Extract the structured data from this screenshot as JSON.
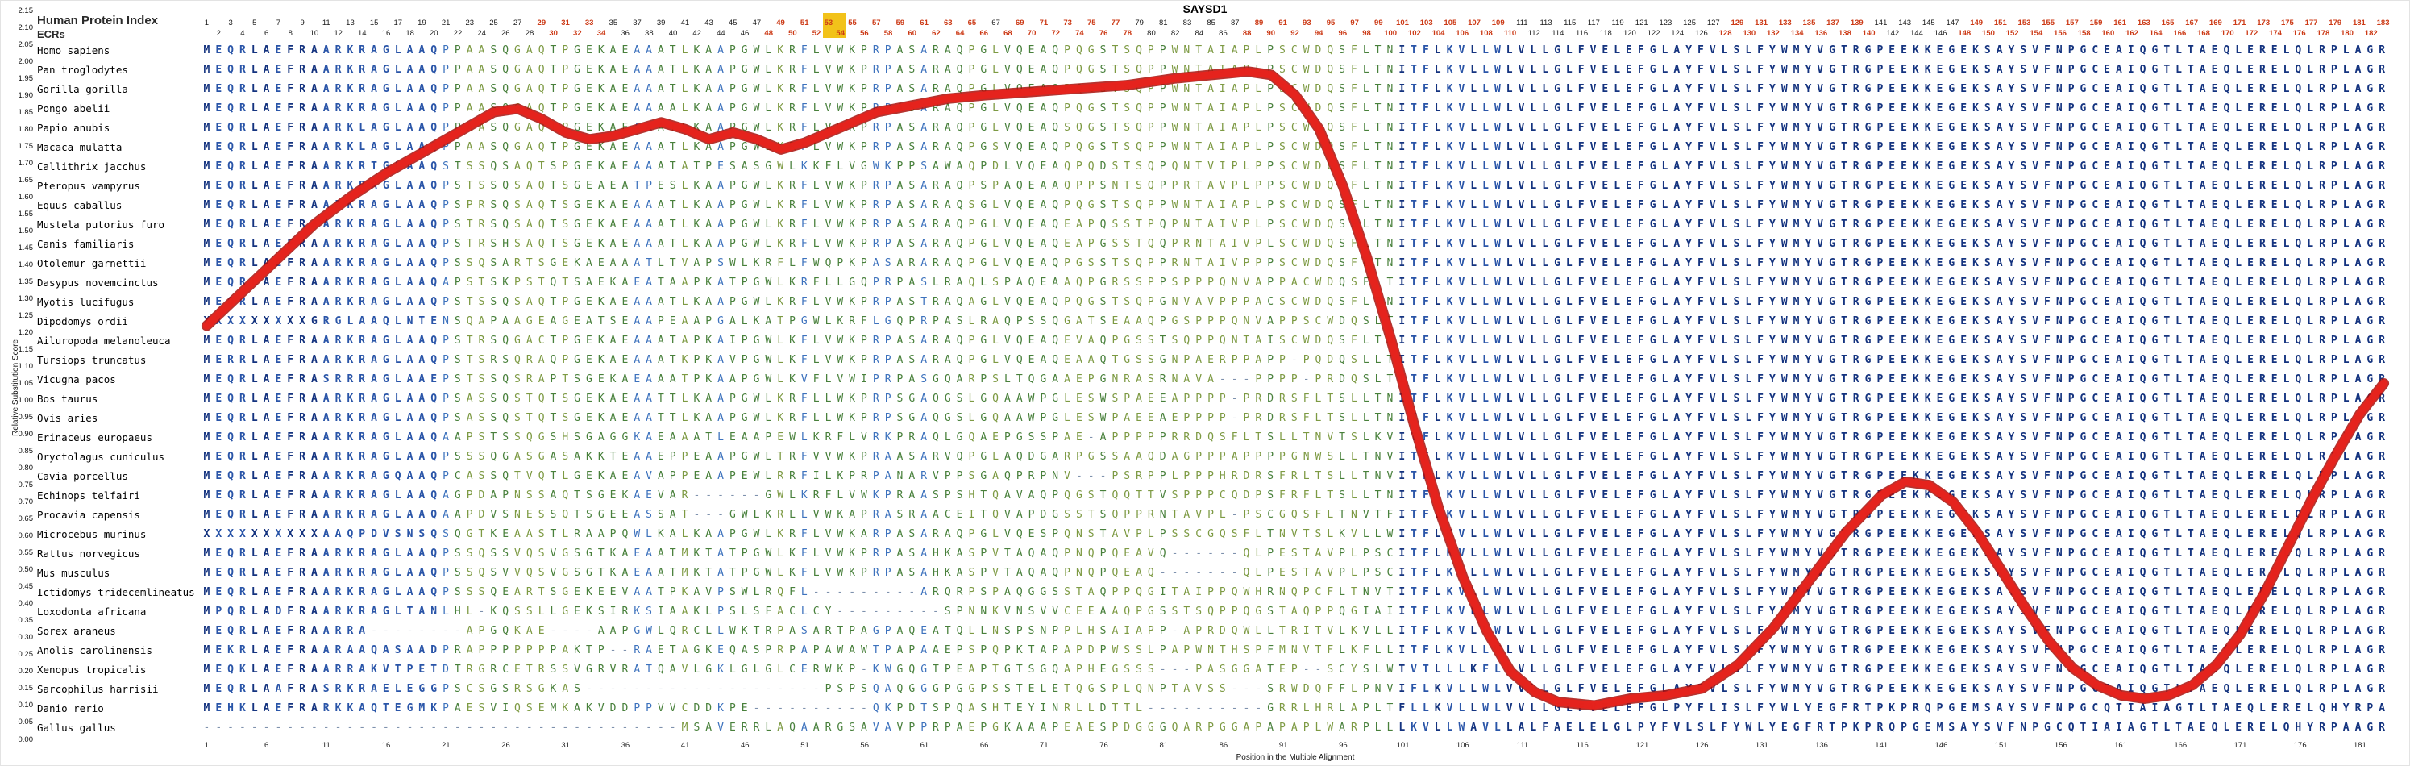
{
  "title": "SAYSD1",
  "header": {
    "index_label": "Human Protein Index",
    "ecrs_label": "ECRs"
  },
  "y_axis": {
    "label": "Relative Substitution Score",
    "ticks": [
      "2.15",
      "2.10",
      "2.05",
      "2.00",
      "1.95",
      "1.90",
      "1.85",
      "1.80",
      "1.75",
      "1.70",
      "1.65",
      "1.60",
      "1.55",
      "1.50",
      "1.45",
      "1.40",
      "1.35",
      "1.30",
      "1.25",
      "1.20",
      "1.15",
      "1.10",
      "1.05",
      "1.00",
      "0.95",
      "0.90",
      "0.85",
      "0.80",
      "0.75",
      "0.70",
      "0.65",
      "0.60",
      "0.55",
      "0.50",
      "0.45",
      "0.40",
      "0.35",
      "0.30",
      "0.25",
      "0.20",
      "0.15",
      "0.10",
      "0.05",
      "0.00"
    ]
  },
  "x_axis": {
    "label": "Position in the Multiple Alignment",
    "ticks": [
      1,
      6,
      11,
      16,
      21,
      26,
      31,
      36,
      41,
      46,
      51,
      56,
      61,
      66,
      71,
      76,
      81,
      86,
      91,
      96,
      101,
      106,
      111,
      116,
      121,
      126,
      131,
      136,
      141,
      146,
      151,
      156,
      161,
      166,
      171,
      176,
      181
    ]
  },
  "colors": {
    "line": "#e8231c",
    "line_shadow": "#a90f0b",
    "number_highlight": "#cc3a16",
    "number_default": "#1a1a1a",
    "yellow_marker": "#f2c21a",
    "seq_high": "#14337f",
    "seq_mid": "#2a55a8",
    "seq_low": "#3d72bd",
    "seq_green": "#48803b",
    "seq_olive": "#7d9a43",
    "gap": "#7e91ad"
  },
  "alignment": {
    "num_positions": 183,
    "ecr_number_ranges": [
      [
        29,
        34
      ],
      [
        48,
        66
      ],
      [
        68,
        78
      ],
      [
        88,
        110
      ],
      [
        128,
        140
      ],
      [
        148,
        183
      ]
    ],
    "yellow_marker_positions": [
      53,
      54
    ],
    "rows": [
      {
        "species": "Homo sapiens",
        "sequence": "MEQRLAEFRAARKRAGLAAQPPAASQGAQTPGEKAEAAATLKAAPGWLKRFLVWKPRPASARAQPGLVQEAQPQGSTSQPPWNTAIAPLPSCWDQSFLTNITFLKVLLWLVLLGLFVELEFGLAYFVLSLFYWMYVGTRGPEEKKEGEKSAYSVFNPGCEAIQGTLTAEQLERELQLRPLAGR"
      },
      {
        "species": "Pan troglodytes",
        "sequence": "MEQRLAEFRAARKRAGLAAQPPAASQGAQTPGEKAEAAATLKAAPGWLKRFLVWKPRPASARAQPGLVQEAQPQGSTSQPPWNTAIAPLPSCWDQSFLTNITFLKVLLWLVLLGLFVELEFGLAYFVLSLFYWMYVGTRGPEEKKEGEKSAYSVFNPGCEAIQGTLTAEQLERELQLRPLAGR"
      },
      {
        "species": "Gorilla gorilla",
        "sequence": "MEQRLAEFRAARKRAGLAAQPPAASQGAQTPGEKAEAAATLKAAPGWLKRFLVWKPRPASARAQPGLVQEAQPQGSTSQPPWNTAIAPLPSCWDQSFLTNITFLKVLLWLVLLGLFVELEFGLAYFVLSLFYWMYVGTRGPEEKKEGEKSAYSVFNPGCEAIQGTLTAEQLERELQLRPLAGR"
      },
      {
        "species": "Pongo abelii",
        "sequence": "MEQRLAEFRAARKRAGLAAQPPAASQGAQTPGEKAEAAAALKAAPGWLKRFLVWKPRPASARAQPGLVQEAQPQGSTSQPPWNTAIAPLPSCWDQSFLTNITFLKVLLWLVLLGLFVELEFGLAYFVLSLFYWMYVGTRGPEEKKEGEKSAYSVFNPGCEAIQGTLTAEQLERELQLRPLAGR"
      },
      {
        "species": "Papio anubis",
        "sequence": "MEQRLAEFRAARKLAGLAAQPPAASQGAQTPGEKAEAAATLKAAPGWLKRFLVWKPRPASARAQPGLVQEAQSQGSTSQPPWNTAIAPLPSCWDQSFLTNITFLKVLLWLVLLGLFVELEFGLAYFVLSLFYWMYVGTRGPEEKKEGEKSAYSVFNPGCEAIQGTLTAEQLERELQLRPLAGR"
      },
      {
        "species": "Macaca mulatta",
        "sequence": "MEQRLAEFRAARKLAGLAAQPPAASQGAQTPGEKAEAAATLKAAPGWLKRFLVWKPRPASARAQPGSVQEAQPQGSTSQPPWNTAIAPLPSCWDQSFLTNITFLKVLLWLVLLGLFVELEFGLAYFVLSLFYWMYVGTRGPEEKKEGEKSAYSVFNPGCEAIQGTLTAEQLERELQLRPLAGR"
      },
      {
        "species": "Callithrix jacchus",
        "sequence": "MEQRLAEFRAARKRTGLAAQSTSSQSAQTSPGEKAEAAATATPESASGWLKKFLVGWKPPSAWAQPDLVQEAQPQDSTSQPQNTVIPLPPSCWDQSFLTNITFLKVLLWLVLLGLFVELEFGLAYFVLSLFYWMYVGTRGPEEKKEGEKSAYSVFNPGCEAIQGTLTAEQLERELQLRPLAGR"
      },
      {
        "species": "Pteropus vampyrus",
        "sequence": "MEQRLAEFRAARKRAGLAAQPSTSSQSAQTSGEAEATPESLKAAPGWLKRFLVWKPRPASARAQPSPAQEAAQPPSNTSQPPRTAVPLPPSCWDQSFLTNITFLKVLLWLVLLGLFVELEFGLAYFVLSLFYWMYVGTRGPEEKKEGEKSAYSVFNPGCEAIQGTLTAEQLERELQLRPLAGR"
      },
      {
        "species": "Equus caballus",
        "sequence": "MEQRLAEFRAARKRAGLAAQPSPRSQSAQTSGEKAEAAATLKAAPGWLKRFLVWKPRPASARAQSGLVQEAQPQGSTSQPPWNTAIAPLPSCWDQSFLTNITFLKVLLWLVLLGLFVELEFGLAYFVLSLFYWMYVGTRGPEEKKEGEKSAYSVFNPGCEAIQGTLTAEQLERELQLRPLAGR"
      },
      {
        "species": "Mustela putorius furo",
        "sequence": "MEQRLAEFRAARKRAGLAAQPSTRSQSAQTSGEKAEAAATLKAAPGWLKRFLVWKPRPASARAQPGLVQEAQEAPQSSTPQPNTAIVPLPSCWDQSFLTNITFLKVLLWLVLLGLFVELEFGLAYFVLSLFYWMYVGTRGPEEKKEGEKSAYSVFNPGCEAIQGTLTAEQLERELQLRPLAGR"
      },
      {
        "species": "Canis familiaris",
        "sequence": "MEQRLAEFRAARKRAGLAAQPSTRSHSAQTSGEKAEAAATLKAAPGWLKRFLVWKPRPASARAQPGLVQEAQEAPGSSTQQPRNTAIVPLSCWDQSFLTNITFLKVLLWLVLLGLFVELEFGLAYFVLSLFYWMYVGTRGPEEKKEGEKSAYSVFNPGCEAIQGTLTAEQLERELQLRPLAGR"
      },
      {
        "species": "Otolemur garnettii",
        "sequence": "MEQRLAEFRAARKRAGLAAQPSSQSARTSGEKAEAAATLTVAPSWLKRFLFWQPKPASARARAQPGLVQEAQPGSSTSQPPRNTAIVPPPSCWDQSFLTNITFLKVLLWLVLLGLFVELEFGLAYFVLSLFYWMYVGTRGPEEKKEGEKSAYSVFNPGCEAIQGTLTAEQLERELQLRPLAGR"
      },
      {
        "species": "Dasypus novemcinctus",
        "sequence": "MEQRLAEFRAARKRAGLAAQAPSTSKPSTQTSAEKAEATAAPKATPGWLKRFLLGQPRPASLRAQLSPAQEAAQPGRSSPPSPPPQNVAPPACWDQSFLTITFLKVLLWLVLLGLFVELEFGLAYFVLSLFYWMYVGTRGPEEKKEGEKSAYSVFNPGCEAIQGTLTAEQLERELQLRPLAGR"
      },
      {
        "species": "Myotis lucifugus",
        "sequence": "MEQRLAEFRAARKRAGLAAQPSTSSQSAQTPGEKAEAAATLKAAPGWLKRFLVWKPRPASTRAQAGLVQEAQPQGSTSQPGNVAVPPPACSCWDQSFLTNITFLKVLLWLVLLGLFVELEFGLAYFVLSLFYWMYVGTRGPEEKKEGEKSAYSVFNPGCEAIQGTLTAEQLERELQLRPLAGR"
      },
      {
        "species": "Dipodomys ordii",
        "sequence": "XXXXXXXXXGRGLAAQLNTENSQAPAAGEAGEATSEAAPEAAPGALKATPGWLKRFLGQPRPASLRAQPSSQGATSEAAQPGSPPPQNVAPPSCWDQSLTITFLKVLLWLVLLGLFVELEFGLAYFVLSLFYWMYVGTRGPEEKKEGEKSAYSVFNPGCEAIQGTLTAEQLERELQLRPLAGR"
      },
      {
        "species": "Ailuropoda melanoleuca",
        "sequence": "MEQRLAEFRAARKRAGLAAQPSTRSQGACTPGEKAEAAATAPKAIPGWLKFLVWKPRPASARAQPGLVQEAQEVAQPGSSTSQPPQNTAISCWDQSFLTNITFLKVLLWLVLLGLFVELEFGLAYFVLSLFYWMYVGTRGPEEKKEGEKSAYSVFNPGCEAIQGTLTAEQLERELQLRPLAGR"
      },
      {
        "species": "Tursiops truncatus",
        "sequence": "MERRLAEFRAARKRAGLAAQPSTSRSQRAQPGEKAEAAATKPKAVPGWLKFLVWKPRPASARAQPGLVQEAQEAAQTGSSGNPAERPPAPP-PQDQSLLTITFLKVLLWLVLLGLFVELEFGLAYFVLSLFYWMYVGTRGPEEKKEGEKSAYSVFNPGCEAIQGTLTAEQLERELQLRPLAGR"
      },
      {
        "species": "Vicugna pacos",
        "sequence": "MEQRLAEFRASRRRAGLAAEPSTSSQSRAPTSGEKAEAAATPKAAPGWLKVFLVWIPRPASGQARPSLTQGAAEPGNRASRNAVA---PPPP-PRDQSLTITFLKVLLWLVLLGLFVELEFGLAYFVLSLFYWMYVGTRGPEEKKEGEKSAYSVFNPGCEAIQGTLTAEQLERELQLRPLAGR"
      },
      {
        "species": "Bos taurus",
        "sequence": "MEQRLAEFRAARKRAGLAAQPSASSQSTQTSGEKAEAATTLKAAPGWLKRFLLWKPRPSGAQGSLGQAAWPGLESWSPAEEAPPPP-PRDRSFLTSLLTNITFLKVLLWLVLLGLFVELEFGLAYFVLSLFYWMYVGTRGPEEKKEGEKSAYSVFNPGCEAIQGTLTAEQLERELQLRPLAGR"
      },
      {
        "species": "Ovis aries",
        "sequence": "MEQRLAEFRAARKRAGLAAQPSASSQSTQTSGEKAEAATTLKAAPGWLKRFLLWKPRPSGAQGSLGQAAWPGLESWPAEEAEPPPP-PRDRSFLTSLLTNITFLKVLLWLVLLGLFVELEFGLAYFVLSLFYWMYVGTRGPEEKKEGEKSAYSVFNPGCEAIQGTLTAEQLERELQLRPLAGR"
      },
      {
        "species": "Erinaceus europaeus",
        "sequence": "MEQRLAEFRAARKRAGLAAQAAPSTSSQGSHSGAGGKAEAAATLEAAPEWLKRFLVRKPRAQLGQAEPGSSPAE-APPPPPRRDQSFLTSLLTNVTSLKVITFLKVLLWLVLLGLFVELEFGLAYFVLSLFYWMYVGTRGPEEKKEGEKSAYSVFNPGCEAIQGTLTAEQLERELQLRPLAGR"
      },
      {
        "species": "Oryctolagus cuniculus",
        "sequence": "MEQRLAEFRAARKRAGLAAQPSSSQGASGASAKKTEAAEPPEAAPGWLTRFVVWKPRAASARVQPGLAQDGARPGSSAAQDAGPPPAPPPPGNWSLLTNVITFLKVLLWLVLLGLFVELEFGLAYFVLSLFYWMYVGTRGPEEKKEGEKSAYSVFNPGCEAIQGTLTAEQLERELQLRPLAGR"
      },
      {
        "species": "Cavia porcellus",
        "sequence": "MEQRLAEFRAARKRAGQAAQPCASSQTVQTLGEKAEAVAPPEAAPEWLRRFILKPRPANARVPPSGAQPRPNV---PSRPPLPPPHRDRSFRLTSLLTNVITFLKVLLWLVLLGLFVELEFGLAYFVLSLFYWMYVGTRGPEEKKEGEKSAYSVFNPGCEAIQGTLTAEQLERELQLRPLAGR"
      },
      {
        "species": "Echinops telfairi",
        "sequence": "MEQRLAEFRAARKRAGLAAQAGPDAPNSSAQTSGEKAEVAR------GWLKRFLVWKPRAASPSHTQAVAQPQGSTQQTTVSPPPCQDPSFRFLTSLLTNITFLKVLLWLVLLGLFVELEFGLAYFVLSLFYWMYVGTRGPEEKKEGEKSAYSVFNPGCEAIQGTLTAEQLERELQLRPLAGR"
      },
      {
        "species": "Procavia capensis",
        "sequence": "MEQRLAEFRAARKRAGLAAQAAPDVSNESSQTSGEEASSAT---GWLKRLLVWKAPRASRAACEITQVAPDGSSTSQPPRNTAVPL-PSCGQSFLTNVTFITFLKVLLWLVLLGLFVELEFGLAYFVLSLFYWMYVGTRGPEEKKEGEKSAYSVFNPGCEAIQGTLTAEQLERELQLRPLAGR"
      },
      {
        "species": "Microcebus murinus",
        "sequence": "XXXXXXXXXXAAQPDVSNSQSQGTKEAASTLRAAPQWLKALKAAPGWLKRFLVWKARPASARAQPGLVQESPQNSTAVPLPSSCGQSFLTNVTSLKVLLWITFLKVLLWLVLLGLFVELEFGLAYFVLSLFYWMYVGTRGPEEKKEGEKSAYSVFNPGCEAIQGTLTAEQLERELQLRPLAGR"
      },
      {
        "species": "Rattus norvegicus",
        "sequence": "MEQRLAEFRAARKRAGLAAQPSSQSSVQSVGSGTKAEAATMKTATPGWLKFLVWKPRPASAHKASPVTAQAQPNQPQEAVQ------QLPESTAVPLPSCITFLKVLLWLVLLGLFVELEFGLAYFVLSLFYWMYVGTRGPEEKKEGEKSAYSVFNPGCEAIQGTLTAEQLERELQLRPLAGR"
      },
      {
        "species": "Mus musculus",
        "sequence": "MEQRLAEFRAARKRAGLAAQPSSQSVVQSVGSGTKAEAATMKTATPGWLKFLVWKPRPASAHKASPVTAQAQPNQPQEAQ-------QLPESTAVPLPSCITFLKVLLWLVLLGLFVELEFGLAYFVLSLFYWMYVGTRGPEEKKEGEKSAYSVFNPGCEAIQGTLTAEQLERELQLRPLAGR"
      },
      {
        "species": "Ictidomys tridecemlineatus",
        "sequence": "MEQRLAEFRAARKRAGLAAQPSSSQEARTSGEKEEVAATPKAVPSWLRQFL---------ARQRPSPAQGGSSTAQPPQGITAIPPQWHRNQPCFLTNVTITFLKVLLWLVLLGLFVELEFGLAYFVLSLFYWMYVGTRGPEEKKEGEKSAYSVFNPGCEAIQGTLTAEQLERELQLRPLAGR"
      },
      {
        "species": "Loxodonta africana",
        "sequence": "MPQRLADFRAARKRAGLTANLHL-KQSSLLGEKSIRKSIAAKLPSLSFACLCY---------SPNNKVNSVVCEEAAQPGSSTSQPPQGSTAQPPQGIAIITFLKVLLWLVLLGLFVELEFGLAYFVLSLFYWMYVGTRGPEEKKEGEKSAYSVFNPGCEAIQGTLTAEQLERELQLRPLAGR"
      },
      {
        "species": "Sorex araneus",
        "sequence": "MEQRLAEFRAARRA--------APGQKAE----AAPGWLQRCLLWKTRPASARTPAGPAQEATQLLNSPSNPPLHSAIAPP-APRDQWLLTRITVLKVLLITFLKVLLWLVLLGLFVELEFGLAYFVLSLFYWMYVGTRGPEEKKEGEKSAYSVFNPGCEAIQGTLTAEQLERELQLRPLAGR"
      },
      {
        "species": "Anolis carolinensis",
        "sequence": "MEKRLAEFRAARAAQASAADPRAPPPPPPPAKTP--RAETAGKEQASPRPAPAWAWTPAPAAEPSPQPKTAPAPDPWSSLPAPWNTHSPFMNVTFLKFLLITFLKVLLWLVLLGLFVELEFGLAYFVLSLFYWMYVGTRGPEEKKEGEKSAYSVFNPGCEAIQGTLTAEQLERELQLRPLAGR"
      },
      {
        "species": "Xenopus tropicalis",
        "sequence": "MEQKLAEFRAARRAKVTPETDTRGRCETRSSVGRVRATQAVLGKLGLGLCERWKP-KWGQGTPEAPTGTSGQAPHEGSSS---PASGGATEP--SCYSLWTVTLLLKFLLVLLGLFVELEFGLAYFVLSLFYWMYVGTRGPEEKKEGEKSAYSVFNPGCEAIQGTLTAEQLERELQLRPLAGR"
      },
      {
        "species": "Sarcophilus harrisii",
        "sequence": "MEQRLAAFRASRKRAELEGGPSCSGSRSGKAS--------------------PSPSQAQGGGPGGPSSTELETQGSPLQNPTAVSS---SRWDQFFLPNVIFLKVLLWLVVLLGLFVELEFGLAYFVLSLFYWMYVGTRGPEEKKEGEKSAYSVFNPGCEAIQGTLTAEQLERELQLRPLAGR"
      },
      {
        "species": "Danio rerio",
        "sequence": "MEHKLAEFRARKKAQTEGMKPAESVIQSEMKAKVDDPPVVCDDKPE----------QKPDTSPQASHTEYINRLLDTTL----------GRRLHRLAPLTFLLKVLLWLVVLLGLFVELEFGLPYFLISLFYWLYEGFRTPKPRQPGEMSAYSVFNPGCQTIAIAGTLTAEQLERELQHYRPA"
      },
      {
        "species": "Gallus gallus",
        "sequence": "----------------------------------------MSAVERRLAQAARGSAVAVPPRPAEPGKAAAPEAESPDGGGQARPGGAPAPAPLWARPLLLKVLLWAVLLALFAELELGLPYFVLSLFYWLYEGFRTPKPRQPGEMSAYSVFNPGCQTIAIAGTLTAEQLERELQHYRPAAGR"
      }
    ]
  },
  "chart_data": {
    "type": "line",
    "title": "SAYSD1",
    "xlabel": "Position in the Multiple Alignment",
    "ylabel": "Relative Substitution Score",
    "xlim": [
      1,
      183
    ],
    "ylim": [
      0,
      2.15
    ],
    "grid": false,
    "legend": "none",
    "series": [
      {
        "name": "Relative Substitution Score",
        "color": "#e8231c",
        "x": [
          1,
          4,
          7,
          10,
          13,
          16,
          19,
          22,
          25,
          27,
          29,
          31,
          33,
          35,
          37,
          39,
          41,
          43,
          45,
          47,
          49,
          51,
          53,
          55,
          57,
          60,
          63,
          66,
          70,
          74,
          78,
          82,
          85,
          88,
          90,
          92,
          94,
          96,
          98,
          100,
          102,
          104,
          106,
          108,
          110,
          112,
          114,
          117,
          120,
          123,
          126,
          129,
          132,
          135,
          138,
          141,
          143,
          145,
          147,
          149,
          151,
          153,
          155,
          157,
          159,
          161,
          163,
          165,
          167,
          169,
          171,
          173,
          175,
          177,
          179,
          181,
          183
        ],
        "y": [
          1.22,
          1.32,
          1.42,
          1.52,
          1.6,
          1.67,
          1.73,
          1.79,
          1.85,
          1.86,
          1.83,
          1.79,
          1.77,
          1.78,
          1.8,
          1.82,
          1.8,
          1.77,
          1.79,
          1.77,
          1.74,
          1.76,
          1.79,
          1.82,
          1.85,
          1.87,
          1.89,
          1.9,
          1.91,
          1.92,
          1.93,
          1.95,
          1.96,
          1.97,
          1.96,
          1.9,
          1.8,
          1.63,
          1.42,
          1.18,
          0.92,
          0.68,
          0.48,
          0.32,
          0.2,
          0.14,
          0.11,
          0.1,
          0.12,
          0.13,
          0.15,
          0.22,
          0.33,
          0.47,
          0.61,
          0.72,
          0.76,
          0.75,
          0.7,
          0.61,
          0.5,
          0.39,
          0.29,
          0.21,
          0.16,
          0.13,
          0.12,
          0.13,
          0.16,
          0.22,
          0.31,
          0.43,
          0.57,
          0.71,
          0.84,
          0.96,
          1.05
        ]
      }
    ]
  }
}
